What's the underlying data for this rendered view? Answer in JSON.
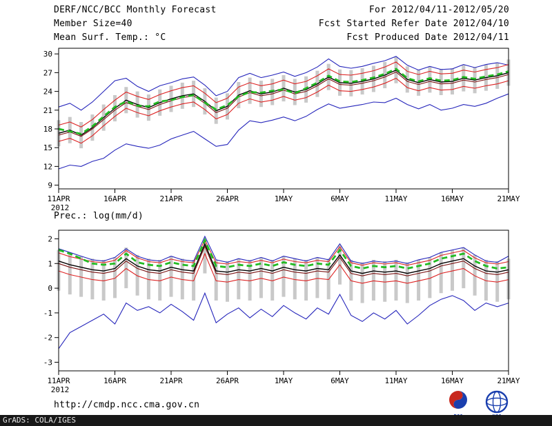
{
  "header": {
    "title": "DERF/NCC/BCC Monthly Forecast",
    "member_size": "Member Size=40",
    "temp_label": "Mean Surf. Temp.: °C",
    "for_range": "For 2012/04/11-2012/05/20",
    "refer_date": "Fcst Started Refer Date 2012/04/10",
    "produced_date": "Fcst Produced Date 2012/04/11"
  },
  "prec_label": "Prec.: log(mm/d)",
  "footer": {
    "url": "http://cmdp.ncc.cma.gov.cn",
    "grads_credit": "GrADS: COLA/IGES",
    "logo_left": "BCC",
    "logo_right": "NCC"
  },
  "colors": {
    "ensemble_bound": "#2525bb",
    "std_band": "#dd2222",
    "control": "#7a1010",
    "mean": "#000000",
    "observation": "#22bb22",
    "spread_bar": "#c9c9c9",
    "frame": "#000000"
  },
  "chart_data": [
    {
      "type": "line",
      "title": "Mean Surf. Temp.: °C",
      "xlabel": "",
      "ylabel": "",
      "ylim": [
        8.4,
        30.9
      ],
      "yticks": [
        9,
        12,
        15,
        18,
        21,
        24,
        27,
        30
      ],
      "x_tick_labels": [
        "11APR",
        "16APR",
        "21APR",
        "26APR",
        "1MAY",
        "6MAY",
        "11MAY",
        "16MAY",
        "21MAY"
      ],
      "x_year_label": "2012",
      "grid": false,
      "legend": "none",
      "series": [
        {
          "name": "ensemble-max",
          "color": "#2525bb",
          "style": "solid",
          "width": 1.1,
          "values": [
            21.5,
            22.1,
            21.0,
            22.3,
            24.0,
            25.7,
            26.1,
            24.8,
            24.0,
            24.9,
            25.4,
            26.0,
            26.3,
            25.0,
            23.3,
            24.0,
            26.2,
            26.9,
            26.2,
            26.6,
            27.1,
            26.4,
            27.0,
            27.9,
            29.2,
            28.0,
            27.7,
            28.0,
            28.5,
            28.9,
            29.6,
            28.2,
            27.4,
            28.0,
            27.5,
            27.6,
            28.3,
            27.8,
            28.3,
            28.6,
            28.2
          ]
        },
        {
          "name": "mean-plus-std",
          "color": "#dd2222",
          "style": "solid",
          "width": 1.1,
          "values": [
            18.6,
            19.1,
            18.3,
            19.5,
            21.1,
            22.6,
            23.9,
            23.2,
            22.7,
            23.5,
            24.1,
            24.6,
            24.9,
            23.7,
            22.2,
            22.9,
            24.7,
            25.4,
            24.9,
            25.2,
            25.8,
            25.2,
            25.6,
            26.5,
            27.6,
            26.7,
            26.6,
            26.9,
            27.3,
            27.9,
            28.7,
            27.2,
            26.7,
            27.2,
            26.8,
            26.9,
            27.4,
            27.1,
            27.5,
            27.8,
            28.3
          ]
        },
        {
          "name": "control-run",
          "color": "#7a1010",
          "style": "solid",
          "width": 1.1,
          "values": [
            17.0,
            17.5,
            16.8,
            18.0,
            19.5,
            21.0,
            22.2,
            21.6,
            21.1,
            21.9,
            22.5,
            23.0,
            23.3,
            22.1,
            20.6,
            21.3,
            23.1,
            23.8,
            23.3,
            23.6,
            24.2,
            23.6,
            24.0,
            24.9,
            26.0,
            25.1,
            25.0,
            25.3,
            25.7,
            26.3,
            27.1,
            25.6,
            25.1,
            25.6,
            25.2,
            25.3,
            25.8,
            25.5,
            25.9,
            26.2,
            26.7
          ]
        },
        {
          "name": "ensemble-mean",
          "color": "#000000",
          "style": "solid",
          "width": 1.4,
          "values": [
            17.3,
            17.8,
            17.0,
            18.2,
            19.8,
            21.3,
            22.6,
            21.9,
            21.4,
            22.2,
            22.8,
            23.3,
            23.6,
            22.4,
            20.9,
            21.6,
            23.4,
            24.1,
            23.6,
            23.9,
            24.5,
            23.9,
            24.3,
            25.2,
            26.3,
            25.4,
            25.3,
            25.6,
            26.0,
            26.6,
            27.4,
            25.9,
            25.4,
            25.9,
            25.5,
            25.6,
            26.1,
            25.8,
            26.2,
            26.5,
            27.0
          ]
        },
        {
          "name": "mean-minus-std",
          "color": "#dd2222",
          "style": "solid",
          "width": 1.1,
          "values": [
            16.0,
            16.5,
            15.7,
            16.9,
            18.5,
            20.0,
            21.3,
            20.6,
            20.1,
            20.9,
            21.5,
            22.0,
            22.3,
            21.1,
            19.6,
            20.3,
            22.1,
            22.8,
            22.3,
            22.6,
            23.2,
            22.6,
            23.0,
            23.9,
            25.0,
            24.1,
            24.0,
            24.3,
            24.7,
            25.3,
            26.1,
            24.6,
            24.1,
            24.6,
            24.2,
            24.3,
            24.8,
            24.5,
            24.9,
            25.2,
            25.7
          ]
        },
        {
          "name": "ensemble-min",
          "color": "#2525bb",
          "style": "solid",
          "width": 1.1,
          "values": [
            11.6,
            12.2,
            12.0,
            12.8,
            13.3,
            14.6,
            15.6,
            15.2,
            14.9,
            15.4,
            16.4,
            17.0,
            17.6,
            16.4,
            15.2,
            15.5,
            17.8,
            19.3,
            19.0,
            19.4,
            19.9,
            19.3,
            20.0,
            21.1,
            22.0,
            21.3,
            21.6,
            21.9,
            22.3,
            22.2,
            22.9,
            21.9,
            21.2,
            21.9,
            21.0,
            21.3,
            21.9,
            21.6,
            22.1,
            22.9,
            23.6
          ]
        },
        {
          "name": "observation",
          "color": "#22bb22",
          "style": "dashed",
          "width": 2.8,
          "values": [
            18.0,
            17.6,
            17.2,
            18.4,
            20.0,
            21.5,
            22.4,
            21.7,
            21.6,
            22.4,
            22.6,
            23.1,
            23.4,
            22.2,
            21.1,
            21.8,
            23.2,
            23.9,
            23.8,
            24.1,
            24.3,
            23.7,
            24.5,
            25.4,
            26.5,
            25.6,
            25.5,
            25.8,
            26.2,
            26.8,
            27.6,
            26.1,
            25.6,
            26.1,
            25.7,
            25.8,
            26.3,
            26.0,
            26.4,
            26.7,
            27.2
          ]
        }
      ],
      "bars": {
        "name": "ensemble-spread-bar",
        "color": "#c9c9c9",
        "top": [
          19.4,
          19.9,
          19.1,
          20.3,
          21.9,
          23.4,
          24.7,
          24.0,
          23.5,
          24.3,
          24.9,
          25.4,
          25.7,
          24.5,
          23.0,
          23.7,
          25.5,
          26.2,
          25.7,
          26.0,
          26.6,
          26.0,
          26.4,
          27.3,
          28.4,
          27.5,
          27.4,
          27.7,
          28.1,
          28.7,
          29.5,
          28.0,
          27.5,
          28.0,
          27.6,
          27.7,
          28.2,
          27.9,
          28.3,
          28.6,
          29.1
        ],
        "bottom": [
          15.2,
          15.7,
          14.9,
          16.1,
          17.7,
          19.2,
          20.5,
          19.8,
          19.3,
          20.1,
          20.7,
          21.2,
          21.5,
          20.3,
          18.8,
          19.5,
          21.3,
          22.0,
          21.5,
          21.8,
          22.4,
          21.8,
          22.2,
          23.1,
          24.2,
          23.3,
          23.2,
          23.5,
          23.9,
          24.5,
          25.3,
          23.8,
          23.3,
          23.8,
          23.4,
          23.5,
          24.0,
          23.7,
          24.1,
          24.4,
          24.9
        ]
      }
    },
    {
      "type": "line",
      "title": "Prec.: log(mm/d)",
      "xlabel": "",
      "ylabel": "",
      "ylim": [
        -3.35,
        2.35
      ],
      "yticks": [
        -3,
        -2,
        -1,
        0,
        1,
        2
      ],
      "x_tick_labels": [
        "11APR",
        "16APR",
        "21APR",
        "26APR",
        "1MAY",
        "6MAY",
        "11MAY",
        "16MAY",
        "21MAY"
      ],
      "x_year_label": "2012",
      "grid": false,
      "legend": "none",
      "series": [
        {
          "name": "ensemble-max",
          "color": "#2525bb",
          "style": "solid",
          "width": 1.1,
          "values": [
            1.6,
            1.45,
            1.3,
            1.15,
            1.1,
            1.25,
            1.6,
            1.3,
            1.15,
            1.1,
            1.3,
            1.15,
            1.1,
            2.1,
            1.15,
            1.05,
            1.2,
            1.1,
            1.25,
            1.1,
            1.3,
            1.2,
            1.1,
            1.25,
            1.15,
            1.8,
            1.1,
            1.0,
            1.1,
            1.05,
            1.1,
            1.0,
            1.15,
            1.25,
            1.45,
            1.55,
            1.65,
            1.35,
            1.1,
            1.05,
            1.3
          ]
        },
        {
          "name": "mean-plus-std",
          "color": "#dd2222",
          "style": "solid",
          "width": 1.1,
          "values": [
            1.43,
            1.28,
            1.18,
            1.08,
            1.03,
            1.13,
            1.53,
            1.23,
            1.08,
            1.03,
            1.18,
            1.08,
            1.03,
            1.95,
            1.03,
            0.98,
            1.08,
            1.03,
            1.13,
            1.03,
            1.18,
            1.08,
            1.03,
            1.13,
            1.08,
            1.68,
            1.03,
            0.93,
            1.03,
            0.98,
            1.03,
            0.93,
            1.03,
            1.13,
            1.33,
            1.43,
            1.53,
            1.23,
            1.03,
            0.98,
            1.08
          ]
        },
        {
          "name": "control-run",
          "color": "#7a1010",
          "style": "solid",
          "width": 1.1,
          "values": [
            1.0,
            0.85,
            0.75,
            0.65,
            0.6,
            0.7,
            1.1,
            0.8,
            0.65,
            0.6,
            0.75,
            0.65,
            0.6,
            1.7,
            0.6,
            0.55,
            0.65,
            0.6,
            0.7,
            0.6,
            0.75,
            0.65,
            0.6,
            0.7,
            0.65,
            1.25,
            0.6,
            0.5,
            0.6,
            0.55,
            0.6,
            0.5,
            0.6,
            0.7,
            0.9,
            1.0,
            1.1,
            0.8,
            0.6,
            0.55,
            0.65
          ]
        },
        {
          "name": "ensemble-mean",
          "color": "#000000",
          "style": "solid",
          "width": 1.4,
          "values": [
            1.1,
            0.95,
            0.85,
            0.75,
            0.7,
            0.8,
            1.2,
            0.9,
            0.75,
            0.7,
            0.85,
            0.75,
            0.7,
            1.8,
            0.7,
            0.65,
            0.75,
            0.7,
            0.8,
            0.7,
            0.85,
            0.75,
            0.7,
            0.8,
            0.75,
            1.35,
            0.7,
            0.6,
            0.7,
            0.65,
            0.7,
            0.6,
            0.7,
            0.8,
            1.0,
            1.1,
            1.2,
            0.9,
            0.7,
            0.65,
            0.75
          ]
        },
        {
          "name": "mean-minus-std",
          "color": "#dd2222",
          "style": "solid",
          "width": 1.1,
          "values": [
            0.7,
            0.55,
            0.45,
            0.35,
            0.3,
            0.4,
            0.8,
            0.5,
            0.35,
            0.3,
            0.45,
            0.35,
            0.3,
            1.4,
            0.3,
            0.25,
            0.35,
            0.3,
            0.4,
            0.3,
            0.45,
            0.35,
            0.3,
            0.4,
            0.35,
            0.95,
            0.3,
            0.2,
            0.3,
            0.25,
            0.3,
            0.2,
            0.3,
            0.4,
            0.6,
            0.7,
            0.8,
            0.5,
            0.3,
            0.25,
            0.35
          ]
        },
        {
          "name": "ensemble-min",
          "color": "#2525bb",
          "style": "solid",
          "width": 1.1,
          "values": [
            -2.45,
            -1.8,
            -1.55,
            -1.3,
            -1.05,
            -1.45,
            -0.6,
            -0.9,
            -0.75,
            -1.0,
            -0.65,
            -0.95,
            -1.3,
            -0.2,
            -1.4,
            -1.05,
            -0.8,
            -1.2,
            -0.85,
            -1.15,
            -0.7,
            -1.0,
            -1.25,
            -0.8,
            -1.05,
            -0.25,
            -1.1,
            -1.35,
            -1.0,
            -1.25,
            -0.9,
            -1.45,
            -1.1,
            -0.7,
            -0.45,
            -0.3,
            -0.5,
            -0.9,
            -0.6,
            -0.75,
            -0.6
          ]
        },
        {
          "name": "observation",
          "color": "#22bb22",
          "style": "dashed",
          "width": 2.8,
          "values": [
            1.55,
            1.4,
            1.2,
            1.0,
            0.95,
            1.0,
            1.4,
            1.05,
            0.95,
            0.9,
            1.05,
            0.95,
            0.9,
            1.95,
            0.9,
            0.85,
            0.95,
            0.9,
            1.0,
            0.9,
            1.05,
            0.95,
            0.9,
            1.0,
            0.95,
            1.55,
            0.9,
            0.8,
            0.9,
            0.85,
            0.9,
            0.8,
            0.9,
            1.0,
            1.2,
            1.3,
            1.4,
            1.1,
            0.9,
            0.8,
            0.85
          ]
        }
      ],
      "bars": {
        "name": "ensemble-spread-bar",
        "color": "#c9c9c9",
        "top": [
          1.55,
          1.4,
          1.3,
          1.2,
          1.15,
          1.25,
          1.65,
          1.35,
          1.2,
          1.15,
          1.3,
          1.2,
          1.15,
          1.95,
          1.15,
          1.1,
          1.2,
          1.15,
          1.25,
          1.15,
          1.3,
          1.2,
          1.15,
          1.25,
          1.2,
          1.75,
          1.15,
          1.05,
          1.15,
          1.1,
          1.15,
          1.05,
          1.15,
          1.25,
          1.45,
          1.55,
          1.65,
          1.35,
          1.15,
          1.1,
          1.2
        ],
        "bottom": [
          -0.1,
          -0.25,
          -0.35,
          -0.45,
          -0.5,
          -0.4,
          0.0,
          -0.3,
          -0.45,
          -0.5,
          -0.35,
          -0.45,
          -0.5,
          0.6,
          -0.5,
          -0.55,
          -0.45,
          -0.5,
          -0.4,
          -0.5,
          -0.35,
          -0.45,
          -0.5,
          -0.4,
          -0.45,
          0.15,
          -0.5,
          -0.6,
          -0.5,
          -0.55,
          -0.5,
          -0.6,
          -0.5,
          -0.4,
          -0.2,
          -0.1,
          0.0,
          -0.3,
          -0.5,
          -0.55,
          -0.45
        ]
      }
    }
  ]
}
